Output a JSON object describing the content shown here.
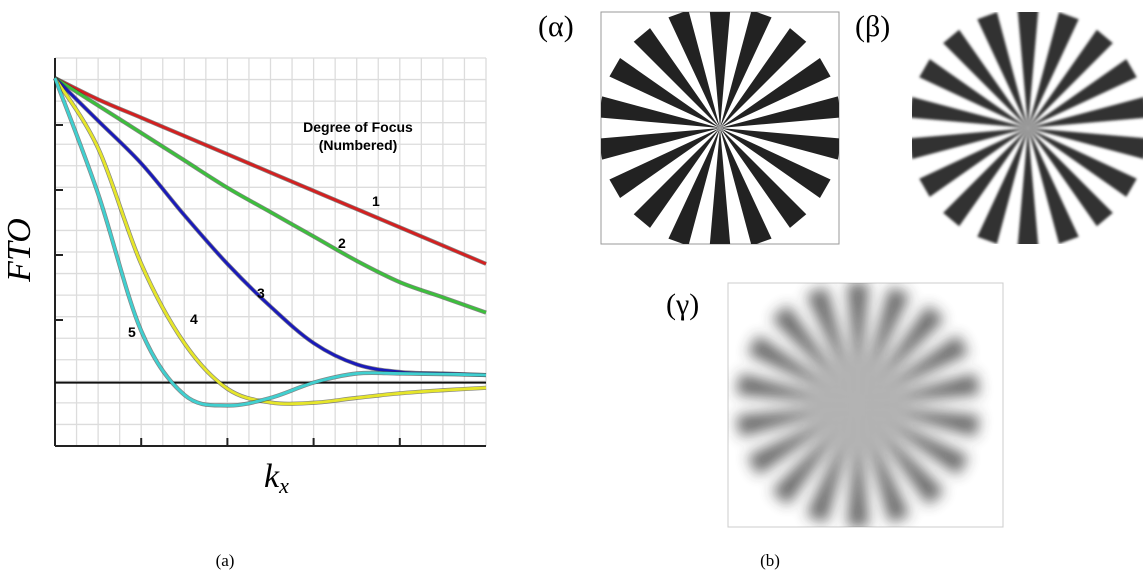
{
  "chart_data": {
    "type": "line",
    "y_label": "FTO",
    "x_label": "k",
    "x_label_sub": "x",
    "legend_title": [
      "Degree of Focus",
      "(Numbered)"
    ],
    "x": [
      0,
      0.1,
      0.2,
      0.3,
      0.4,
      0.5,
      0.6,
      0.7,
      0.8,
      0.9,
      1
    ],
    "xlim": [
      0,
      1
    ],
    "ylim": [
      -0.208,
      1.066
    ],
    "grid": true,
    "series": [
      {
        "name": "1",
        "color": "#d42020",
        "values": [
          1,
          0.93,
          0.87,
          0.81,
          0.75,
          0.69,
          0.63,
          0.57,
          0.51,
          0.45,
          0.39
        ]
      },
      {
        "name": "2",
        "color": "#3cbf3c",
        "values": [
          1,
          0.91,
          0.82,
          0.73,
          0.64,
          0.56,
          0.48,
          0.4,
          0.33,
          0.28,
          0.23
        ]
      },
      {
        "name": "3",
        "color": "#1a1aba",
        "values": [
          1,
          0.86,
          0.72,
          0.55,
          0.39,
          0.25,
          0.13,
          0.06,
          0.035,
          0.03,
          0.025
        ]
      },
      {
        "name": "4",
        "color": "#e6e62a",
        "values": [
          1,
          0.77,
          0.39,
          0.13,
          -0.02,
          -0.065,
          -0.066,
          -0.05,
          -0.035,
          -0.025,
          -0.017
        ]
      },
      {
        "name": "5",
        "color": "#40d0d0",
        "values": [
          1,
          0.62,
          0.17,
          -0.04,
          -0.075,
          -0.05,
          0,
          0.03,
          0.03,
          0.028,
          0.025
        ]
      }
    ]
  },
  "figure": {
    "caption_a": "(a)",
    "caption_b": "(b)",
    "panels": [
      "(α)",
      "(β)",
      "(γ)"
    ]
  }
}
